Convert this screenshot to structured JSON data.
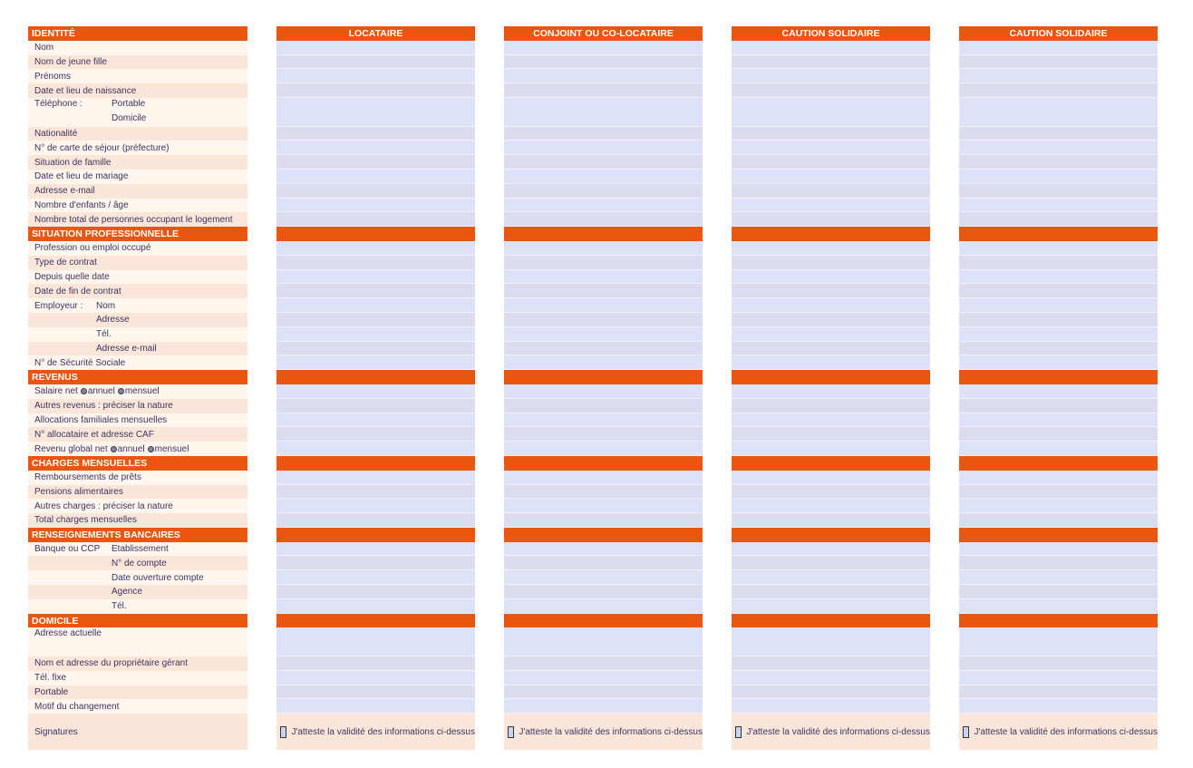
{
  "columns": [
    "LOCATAIRE",
    "CONJOINT OU CO-LOCATAIRE",
    "CAUTION SOLIDAIRE",
    "CAUTION SOLIDAIRE"
  ],
  "sections": [
    {
      "title": "IDENTITÉ",
      "rows": [
        {
          "label": "Nom"
        },
        {
          "label": "Nom de jeune fille"
        },
        {
          "label": "Prénoms"
        },
        {
          "label": "Date et lieu de naissance"
        },
        {
          "label": "Téléphone :",
          "sub": "Portable",
          "sub2": "Domicile",
          "span": 2,
          "indent": "wide"
        },
        {
          "label": "Nationalité"
        },
        {
          "label": "N° de carte de séjour (préfecture)"
        },
        {
          "label": "Situation de famille"
        },
        {
          "label": "Date et lieu de mariage"
        },
        {
          "label": "Adresse e-mail"
        },
        {
          "label": "Nombre d'enfants / âge"
        },
        {
          "label": "Nombre total de personnes occupant le logement"
        }
      ]
    },
    {
      "title": "SITUATION PROFESSIONNELLE",
      "rows": [
        {
          "label": "Profession ou emploi occupé"
        },
        {
          "label": "Type de contrat"
        },
        {
          "label": "Depuis quelle date"
        },
        {
          "label": "Date de fin de contrat"
        },
        {
          "label": "Employeur :",
          "sub": "Nom",
          "indent": "mid"
        },
        {
          "label": "",
          "sub": "Adresse",
          "indent": "mid"
        },
        {
          "label": "",
          "sub": "Tél.",
          "indent": "mid"
        },
        {
          "label": "",
          "sub": "Adresse e-mail",
          "indent": "mid"
        },
        {
          "label": "N° de Sécurité Sociale"
        }
      ]
    },
    {
      "title": "REVENUS",
      "rows": [
        {
          "label": "Salaire net",
          "options": [
            "annuel",
            "mensuel"
          ]
        },
        {
          "label": "Autres revenus : préciser la nature"
        },
        {
          "label": "Allocations familiales mensuelles"
        },
        {
          "label": "N° allocataire et adresse CAF"
        },
        {
          "label": "Revenu global net",
          "options": [
            "annuel",
            "mensuel"
          ]
        }
      ]
    },
    {
      "title": "CHARGES MENSUELLES",
      "rows": [
        {
          "label": "Remboursements de prêts"
        },
        {
          "label": "Pensions alimentaires"
        },
        {
          "label": "Autres charges : préciser la nature"
        },
        {
          "label": "Total charges mensuelles"
        }
      ]
    },
    {
      "title": "RENSEIGNEMENTS BANCAIRES",
      "rows": [
        {
          "label": "Banque ou CCP",
          "sub": "Etablissement",
          "indent": "wide"
        },
        {
          "label": "",
          "sub": "N° de compte",
          "indent": "wide"
        },
        {
          "label": "",
          "sub": "Date ouverture compte",
          "indent": "wide"
        },
        {
          "label": "",
          "sub": "Agence",
          "indent": "wide"
        },
        {
          "label": "",
          "sub": "Tél.",
          "indent": "wide"
        }
      ]
    },
    {
      "title": "DOMICILE",
      "rows": [
        {
          "label": "Adresse actuelle",
          "span": 2
        },
        {
          "label": "Nom et adresse du propriétaire gérant"
        },
        {
          "label": "Tél. fixe"
        },
        {
          "label": "Portable"
        },
        {
          "label": "Motif du changement"
        }
      ]
    }
  ],
  "signatures": {
    "label": "Signatures",
    "attest": "J'atteste la validité des informations ci-dessus",
    "checked": false
  },
  "colors": {
    "header": "#e9560f",
    "row_light": "#fff6ee",
    "row_dark": "#fce6da",
    "field": "#dde2f8"
  }
}
